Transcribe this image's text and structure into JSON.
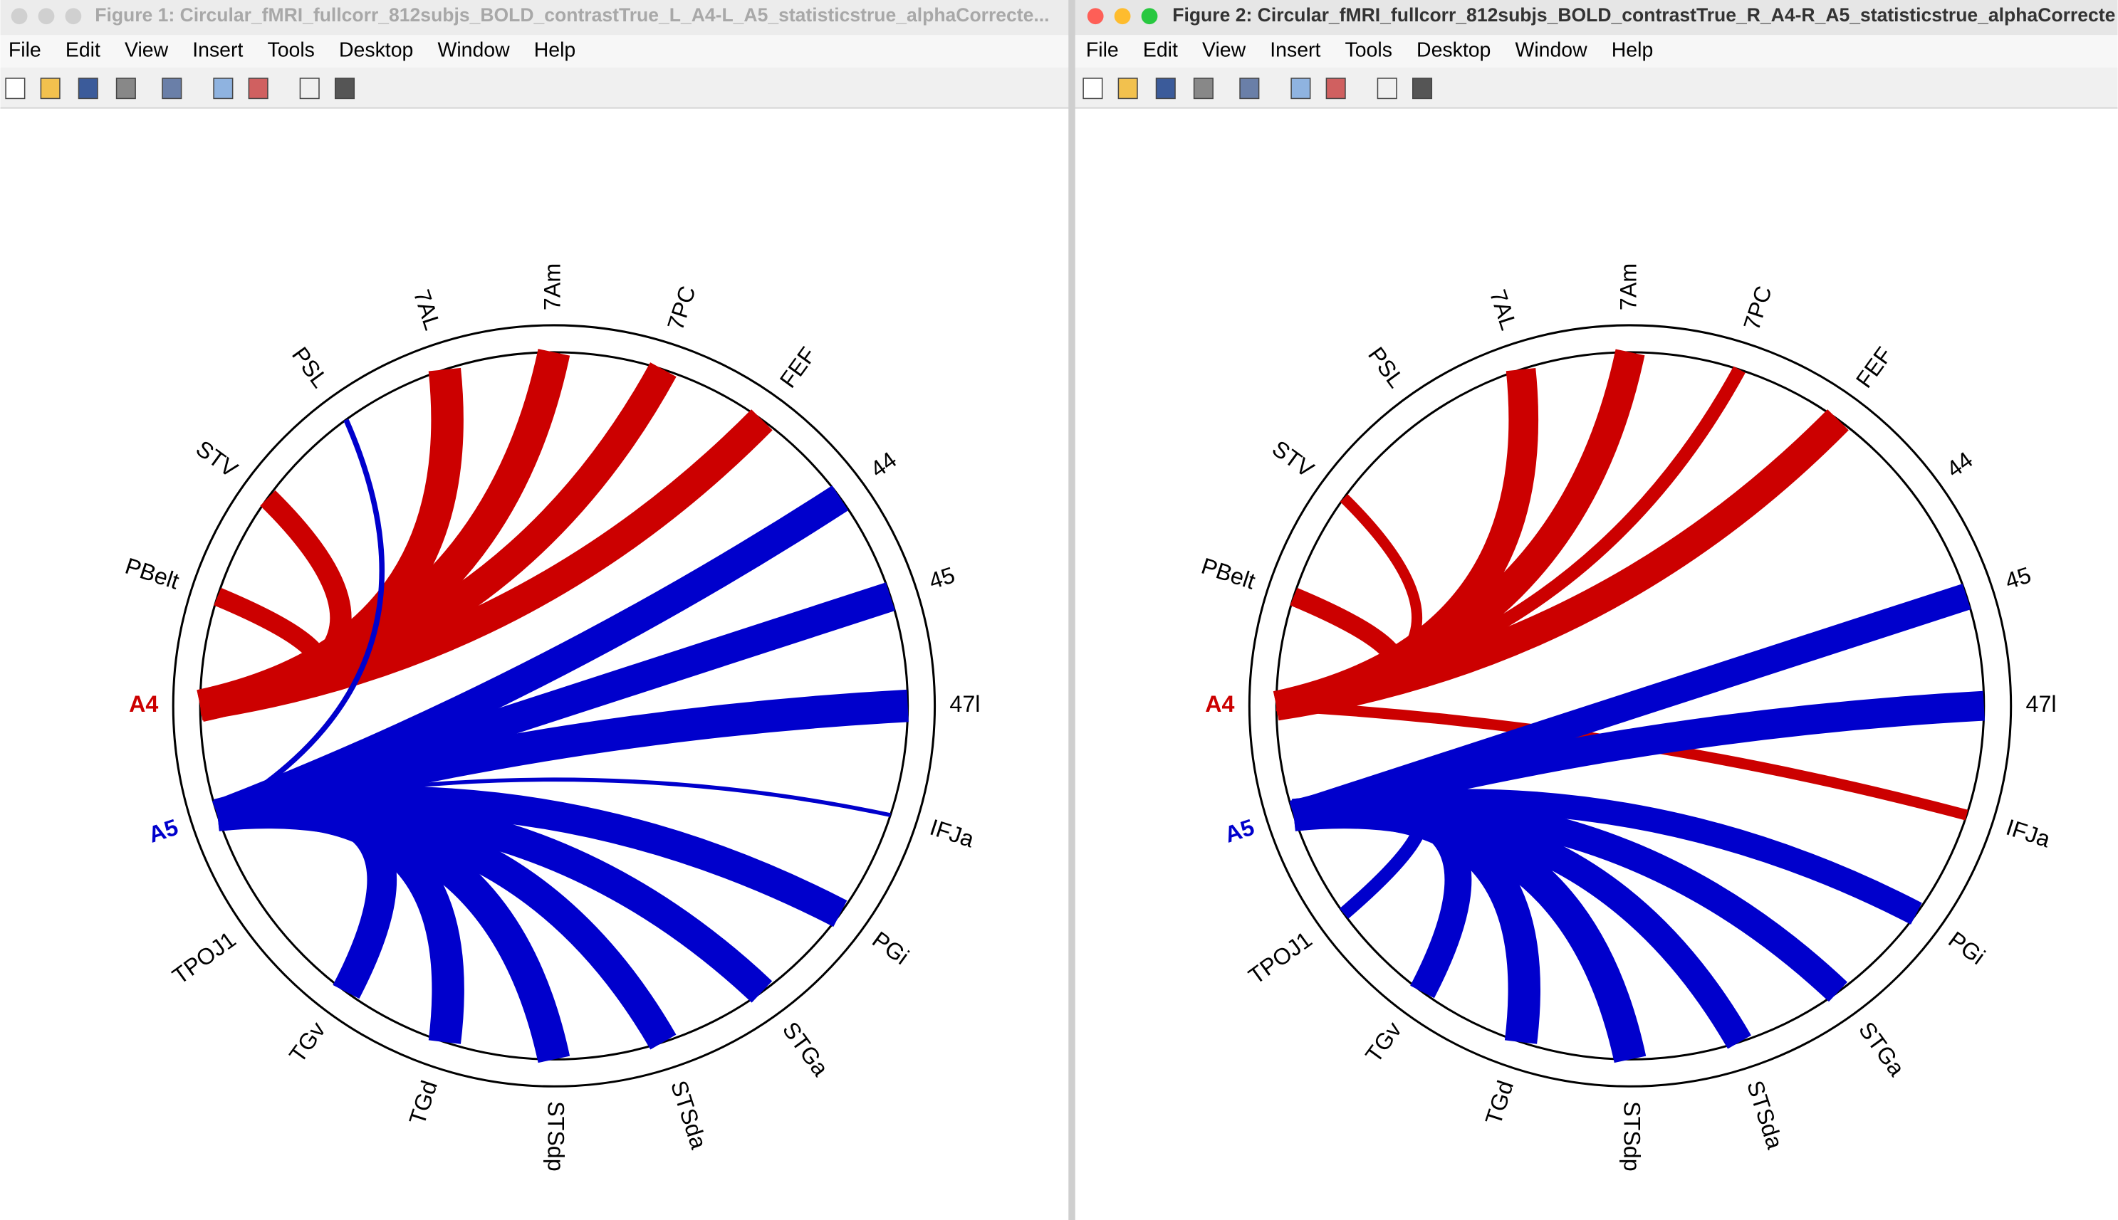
{
  "windows": [
    {
      "title": "Figure 1: Circular_fMRI_fullcorr_812subjs_BOLD_contrastTrue_L_A4-L_A5_statisticstrue_alphaCorrecte...",
      "menu": [
        "File",
        "Edit",
        "View",
        "Insert",
        "Tools",
        "Desktop",
        "Window",
        "Help"
      ]
    },
    {
      "title": "Figure 2: Circular_fMRI_fullcorr_812subjs_BOLD_contrastTrue_R_A4-R_A5_statisticstrue_alphaCorrecte",
      "menu": [
        "File",
        "Edit",
        "View",
        "Insert",
        "Tools",
        "Desktop",
        "Window",
        "Help"
      ]
    }
  ],
  "chart_data": [
    {
      "type": "chord",
      "nodes": [
        {
          "label": "A4",
          "color": "#cc0000",
          "bold": true
        },
        {
          "label": "PBelt",
          "color": "#000000"
        },
        {
          "label": "STV",
          "color": "#000000"
        },
        {
          "label": "PSL",
          "color": "#000000"
        },
        {
          "label": "7AL",
          "color": "#000000"
        },
        {
          "label": "7Am",
          "color": "#000000"
        },
        {
          "label": "7PC",
          "color": "#000000"
        },
        {
          "label": "FEF",
          "color": "#000000"
        },
        {
          "label": "44",
          "color": "#000000"
        },
        {
          "label": "45",
          "color": "#000000"
        },
        {
          "label": "47l",
          "color": "#000000"
        },
        {
          "label": "IFJa",
          "color": "#000000"
        },
        {
          "label": "PGi",
          "color": "#000000"
        },
        {
          "label": "STGa",
          "color": "#000000"
        },
        {
          "label": "STSda",
          "color": "#000000"
        },
        {
          "label": "STSdp",
          "color": "#000000"
        },
        {
          "label": "TGd",
          "color": "#000000"
        },
        {
          "label": "TGv",
          "color": "#000000"
        },
        {
          "label": "TPOJ1",
          "color": "#000000"
        },
        {
          "label": "A5",
          "color": "#0000cc",
          "bold": true
        }
      ],
      "links": [
        {
          "source": 0,
          "target": 1,
          "weight": 14,
          "color": "#cc0000"
        },
        {
          "source": 0,
          "target": 2,
          "weight": 16,
          "color": "#cc0000"
        },
        {
          "source": 0,
          "target": 4,
          "weight": 24,
          "color": "#cc0000"
        },
        {
          "source": 0,
          "target": 5,
          "weight": 24,
          "color": "#cc0000"
        },
        {
          "source": 0,
          "target": 6,
          "weight": 22,
          "color": "#cc0000"
        },
        {
          "source": 0,
          "target": 7,
          "weight": 22,
          "color": "#cc0000"
        },
        {
          "source": 19,
          "target": 3,
          "weight": 4,
          "color": "#0000cc"
        },
        {
          "source": 19,
          "target": 8,
          "weight": 22,
          "color": "#0000cc"
        },
        {
          "source": 19,
          "target": 9,
          "weight": 22,
          "color": "#0000cc"
        },
        {
          "source": 19,
          "target": 10,
          "weight": 24,
          "color": "#0000cc"
        },
        {
          "source": 19,
          "target": 11,
          "weight": 3,
          "color": "#0000cc"
        },
        {
          "source": 19,
          "target": 12,
          "weight": 22,
          "color": "#0000cc"
        },
        {
          "source": 19,
          "target": 13,
          "weight": 22,
          "color": "#0000cc"
        },
        {
          "source": 19,
          "target": 14,
          "weight": 22,
          "color": "#0000cc"
        },
        {
          "source": 19,
          "target": 15,
          "weight": 24,
          "color": "#0000cc"
        },
        {
          "source": 19,
          "target": 16,
          "weight": 24,
          "color": "#0000cc"
        },
        {
          "source": 19,
          "target": 17,
          "weight": 22,
          "color": "#0000cc"
        }
      ]
    },
    {
      "type": "chord",
      "nodes": [
        {
          "label": "A4",
          "color": "#cc0000",
          "bold": true
        },
        {
          "label": "PBelt",
          "color": "#000000"
        },
        {
          "label": "STV",
          "color": "#000000"
        },
        {
          "label": "PSL",
          "color": "#000000"
        },
        {
          "label": "7AL",
          "color": "#000000"
        },
        {
          "label": "7Am",
          "color": "#000000"
        },
        {
          "label": "7PC",
          "color": "#000000"
        },
        {
          "label": "FEF",
          "color": "#000000"
        },
        {
          "label": "44",
          "color": "#000000"
        },
        {
          "label": "45",
          "color": "#000000"
        },
        {
          "label": "47l",
          "color": "#000000"
        },
        {
          "label": "IFJa",
          "color": "#000000"
        },
        {
          "label": "PGi",
          "color": "#000000"
        },
        {
          "label": "STGa",
          "color": "#000000"
        },
        {
          "label": "STSda",
          "color": "#000000"
        },
        {
          "label": "STSdp",
          "color": "#000000"
        },
        {
          "label": "TGd",
          "color": "#000000"
        },
        {
          "label": "TGv",
          "color": "#000000"
        },
        {
          "label": "TPOJ1",
          "color": "#000000"
        },
        {
          "label": "A5",
          "color": "#0000cc",
          "bold": true
        }
      ],
      "links": [
        {
          "source": 0,
          "target": 1,
          "weight": 14,
          "color": "#cc0000"
        },
        {
          "source": 0,
          "target": 2,
          "weight": 8,
          "color": "#cc0000"
        },
        {
          "source": 0,
          "target": 4,
          "weight": 22,
          "color": "#cc0000"
        },
        {
          "source": 0,
          "target": 5,
          "weight": 22,
          "color": "#cc0000"
        },
        {
          "source": 0,
          "target": 6,
          "weight": 10,
          "color": "#cc0000"
        },
        {
          "source": 0,
          "target": 7,
          "weight": 22,
          "color": "#cc0000"
        },
        {
          "source": 0,
          "target": 11,
          "weight": 8,
          "color": "#cc0000"
        },
        {
          "source": 19,
          "target": 9,
          "weight": 20,
          "color": "#0000cc"
        },
        {
          "source": 19,
          "target": 10,
          "weight": 22,
          "color": "#0000cc"
        },
        {
          "source": 19,
          "target": 12,
          "weight": 18,
          "color": "#0000cc"
        },
        {
          "source": 19,
          "target": 13,
          "weight": 20,
          "color": "#0000cc"
        },
        {
          "source": 19,
          "target": 14,
          "weight": 20,
          "color": "#0000cc"
        },
        {
          "source": 19,
          "target": 15,
          "weight": 24,
          "color": "#0000cc"
        },
        {
          "source": 19,
          "target": 16,
          "weight": 24,
          "color": "#0000cc"
        },
        {
          "source": 19,
          "target": 17,
          "weight": 20,
          "color": "#0000cc"
        },
        {
          "source": 19,
          "target": 18,
          "weight": 10,
          "color": "#0000cc"
        }
      ]
    }
  ]
}
